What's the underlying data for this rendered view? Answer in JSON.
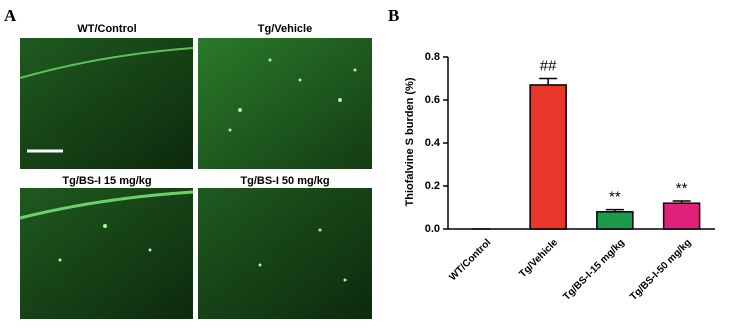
{
  "panels": {
    "A": {
      "label": "A",
      "images": [
        "WT/Control",
        "Tg/Vehicle",
        "Tg/BS-I 15 mg/kg",
        "Tg/BS-I  50 mg/kg"
      ]
    },
    "B": {
      "label": "B"
    }
  },
  "chart_data": {
    "type": "bar",
    "y_label": "Thiofalvine S burden (%)",
    "categories": [
      "WT/Control",
      "Tg/Vehicle",
      "Tg/BS-I-15 mg/kg",
      "Tg/BS-I-50 mg/kg"
    ],
    "values": [
      0,
      0.67,
      0.08,
      0.12
    ],
    "errors": [
      0,
      0.03,
      0.01,
      0.01
    ],
    "annotations": [
      null,
      "##",
      "**",
      "**"
    ],
    "colors": [
      "#ffffff",
      "#e8372a",
      "#1a9a4a",
      "#e0217a"
    ],
    "ylim": [
      0,
      0.8
    ],
    "yticks": [
      {
        "value": 0,
        "label": "0.0"
      },
      0.2,
      0.4,
      0.6,
      0.8
    ]
  }
}
